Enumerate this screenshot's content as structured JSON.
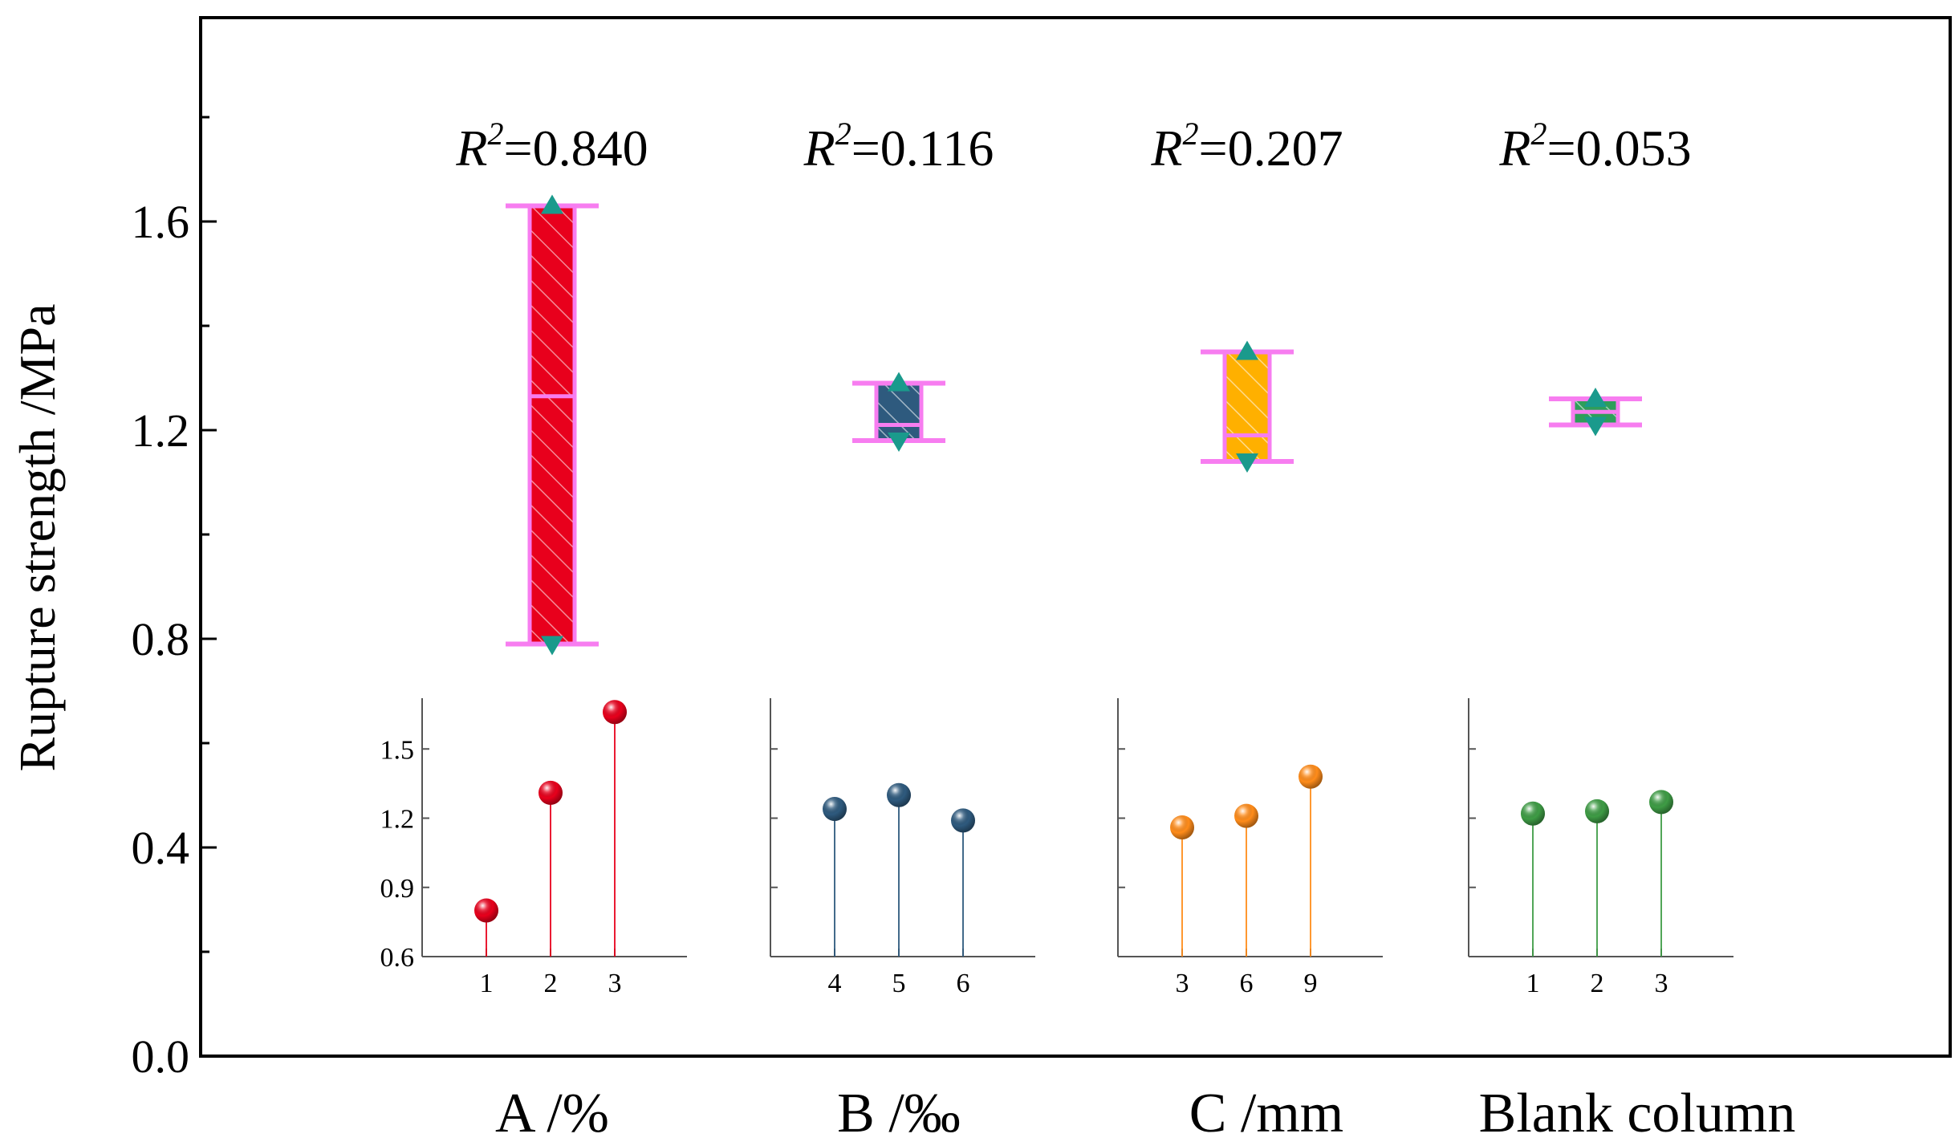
{
  "chart_data": {
    "type": "bar",
    "ylabel": "Rupture strength /MPa",
    "ylim": [
      0.0,
      2.0
    ],
    "yticks": [
      "0.0",
      "0.4",
      "0.8",
      "1.2",
      "1.6"
    ],
    "ytick_values": [
      0.0,
      0.4,
      0.8,
      1.2,
      1.6
    ],
    "grid": false,
    "groups": [
      {
        "label": "A /%",
        "r2_symbol": "R",
        "r2_exp": "2",
        "r2_value": "=0.840",
        "color": "#E8001C",
        "min": 0.79,
        "max": 1.63,
        "mean": 1.265,
        "inset": {
          "xticks": [
            "1",
            "2",
            "3"
          ],
          "values": [
            0.8,
            1.31,
            1.66
          ],
          "color": "#E8001C"
        }
      },
      {
        "label": "B /‰",
        "r2_symbol": "R",
        "r2_exp": "2",
        "r2_value": "=0.116",
        "color": "#2E5A7E",
        "min": 1.18,
        "max": 1.29,
        "mean": 1.21,
        "inset": {
          "xticks": [
            "4",
            "5",
            "6"
          ],
          "values": [
            1.24,
            1.3,
            1.19
          ],
          "color": "#2E5A7E"
        }
      },
      {
        "label": "C /mm",
        "r2_symbol": "R",
        "r2_exp": "2",
        "r2_value": "=0.207",
        "color": "#FFB000",
        "min": 1.14,
        "max": 1.35,
        "mean": 1.19,
        "inset": {
          "xticks": [
            "3",
            "6",
            "9"
          ],
          "values": [
            1.16,
            1.21,
            1.38
          ],
          "color": "#FF8C1A"
        }
      },
      {
        "label": "Blank column",
        "r2_symbol": "R",
        "r2_exp": "2",
        "r2_value": "=0.053",
        "color": "#2E9E5A",
        "min": 1.21,
        "max": 1.26,
        "mean": 1.235,
        "inset": {
          "xticks": [
            "1",
            "2",
            "3"
          ],
          "values": [
            1.22,
            1.23,
            1.27
          ],
          "color": "#3E9C45"
        }
      }
    ],
    "inset_yticks": [
      "0.6",
      "0.9",
      "1.2",
      "1.5"
    ],
    "inset_ytick_values": [
      0.6,
      0.9,
      1.2,
      1.5
    ],
    "inset_ylim": [
      0.6,
      1.72
    ],
    "whisker_color": "#F77DF0",
    "marker_color": "#1A9A8C"
  }
}
